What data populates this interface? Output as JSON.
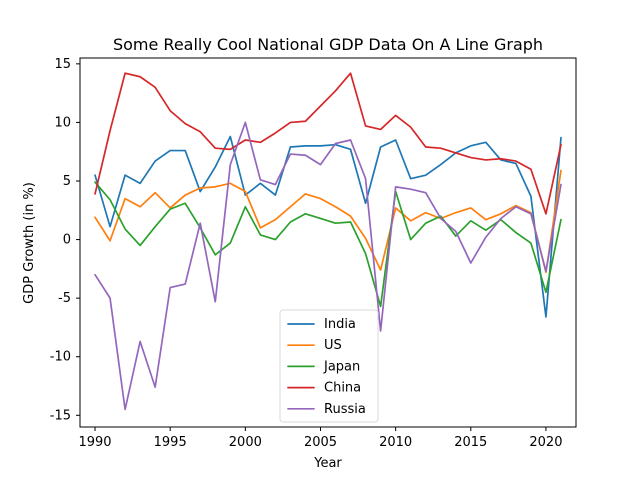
{
  "chart_data": {
    "type": "line",
    "title": "Some Really Cool National GDP Data On A Line Graph",
    "xlabel": "Year",
    "ylabel": "GDP Growth (in %)",
    "xlim": [
      1989,
      2022
    ],
    "ylim": [
      -16,
      15.5
    ],
    "xticks": [
      1990,
      1995,
      2000,
      2005,
      2010,
      2015,
      2020
    ],
    "yticks": [
      -15,
      -10,
      -5,
      0,
      5,
      10,
      15
    ],
    "grid": false,
    "legend_position": "bottom-center",
    "x": [
      1990,
      1991,
      1992,
      1993,
      1994,
      1995,
      1996,
      1997,
      1998,
      1999,
      2000,
      2001,
      2002,
      2003,
      2004,
      2005,
      2006,
      2007,
      2008,
      2009,
      2010,
      2011,
      2012,
      2013,
      2014,
      2015,
      2016,
      2017,
      2018,
      2019,
      2020,
      2021
    ],
    "series": [
      {
        "name": "India",
        "color": "#1f77b4",
        "values": [
          5.5,
          1.1,
          5.5,
          4.8,
          6.7,
          7.6,
          7.6,
          4.1,
          6.2,
          8.8,
          3.8,
          4.8,
          3.8,
          7.9,
          8.0,
          8.0,
          8.1,
          7.7,
          3.1,
          7.9,
          8.5,
          5.2,
          5.5,
          6.4,
          7.4,
          8.0,
          8.3,
          6.8,
          6.5,
          3.7,
          -6.6,
          8.7
        ]
      },
      {
        "name": "US",
        "color": "#ff7f0e",
        "values": [
          1.9,
          -0.1,
          3.5,
          2.8,
          4.0,
          2.7,
          3.8,
          4.4,
          4.5,
          4.8,
          4.1,
          1.0,
          1.7,
          2.8,
          3.9,
          3.5,
          2.8,
          2.0,
          0.1,
          -2.6,
          2.7,
          1.6,
          2.3,
          1.8,
          2.3,
          2.7,
          1.7,
          2.2,
          2.9,
          2.3,
          -2.8,
          5.9
        ]
      },
      {
        "name": "Japan",
        "color": "#2ca02c",
        "values": [
          4.9,
          3.4,
          0.9,
          -0.5,
          1.1,
          2.6,
          3.1,
          1.0,
          -1.3,
          -0.3,
          2.8,
          0.4,
          0.0,
          1.5,
          2.2,
          1.8,
          1.4,
          1.5,
          -1.2,
          -5.7,
          4.1,
          0.0,
          1.4,
          2.0,
          0.3,
          1.6,
          0.8,
          1.7,
          0.6,
          -0.3,
          -4.5,
          1.7
        ]
      },
      {
        "name": "China",
        "color": "#d62728",
        "values": [
          3.9,
          9.3,
          14.2,
          13.9,
          13.0,
          11.0,
          9.9,
          9.2,
          7.8,
          7.7,
          8.5,
          8.3,
          9.1,
          10.0,
          10.1,
          11.4,
          12.7,
          14.2,
          9.7,
          9.4,
          10.6,
          9.6,
          7.9,
          7.8,
          7.4,
          7.0,
          6.8,
          6.9,
          6.7,
          6.0,
          2.2,
          8.1
        ]
      },
      {
        "name": "Russia",
        "color": "#9467bd",
        "values": [
          -3.0,
          -5.0,
          -14.5,
          -8.7,
          -12.6,
          -4.1,
          -3.8,
          1.4,
          -5.3,
          6.4,
          10.0,
          5.1,
          4.7,
          7.3,
          7.2,
          6.4,
          8.2,
          8.5,
          5.2,
          -7.8,
          4.5,
          4.3,
          4.0,
          1.8,
          0.7,
          -2.0,
          0.2,
          1.8,
          2.8,
          2.2,
          -2.7,
          4.7
        ]
      }
    ]
  }
}
